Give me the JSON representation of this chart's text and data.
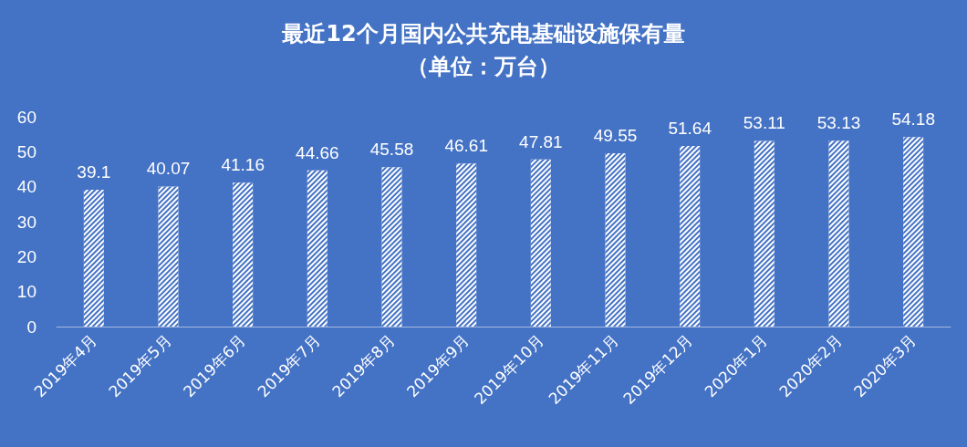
{
  "chart_data": {
    "type": "bar",
    "title": "最近12个月国内公共充电基础设施保有量",
    "subtitle": "（单位：万台）",
    "categories": [
      "2019年4月",
      "2019年5月",
      "2019年6月",
      "2019年7月",
      "2019年8月",
      "2019年9月",
      "2019年10月",
      "2019年11月",
      "2019年12月",
      "2020年1月",
      "2020年2月",
      "2020年3月"
    ],
    "values": [
      39.1,
      40.07,
      41.16,
      44.66,
      45.58,
      46.61,
      47.81,
      49.55,
      51.64,
      53.11,
      53.13,
      54.18
    ],
    "color": "#ffffff",
    "ylim": [
      0,
      60
    ],
    "yticks": [
      0,
      10,
      20,
      30,
      40,
      50,
      60
    ],
    "grid": false,
    "data_labels": true
  }
}
